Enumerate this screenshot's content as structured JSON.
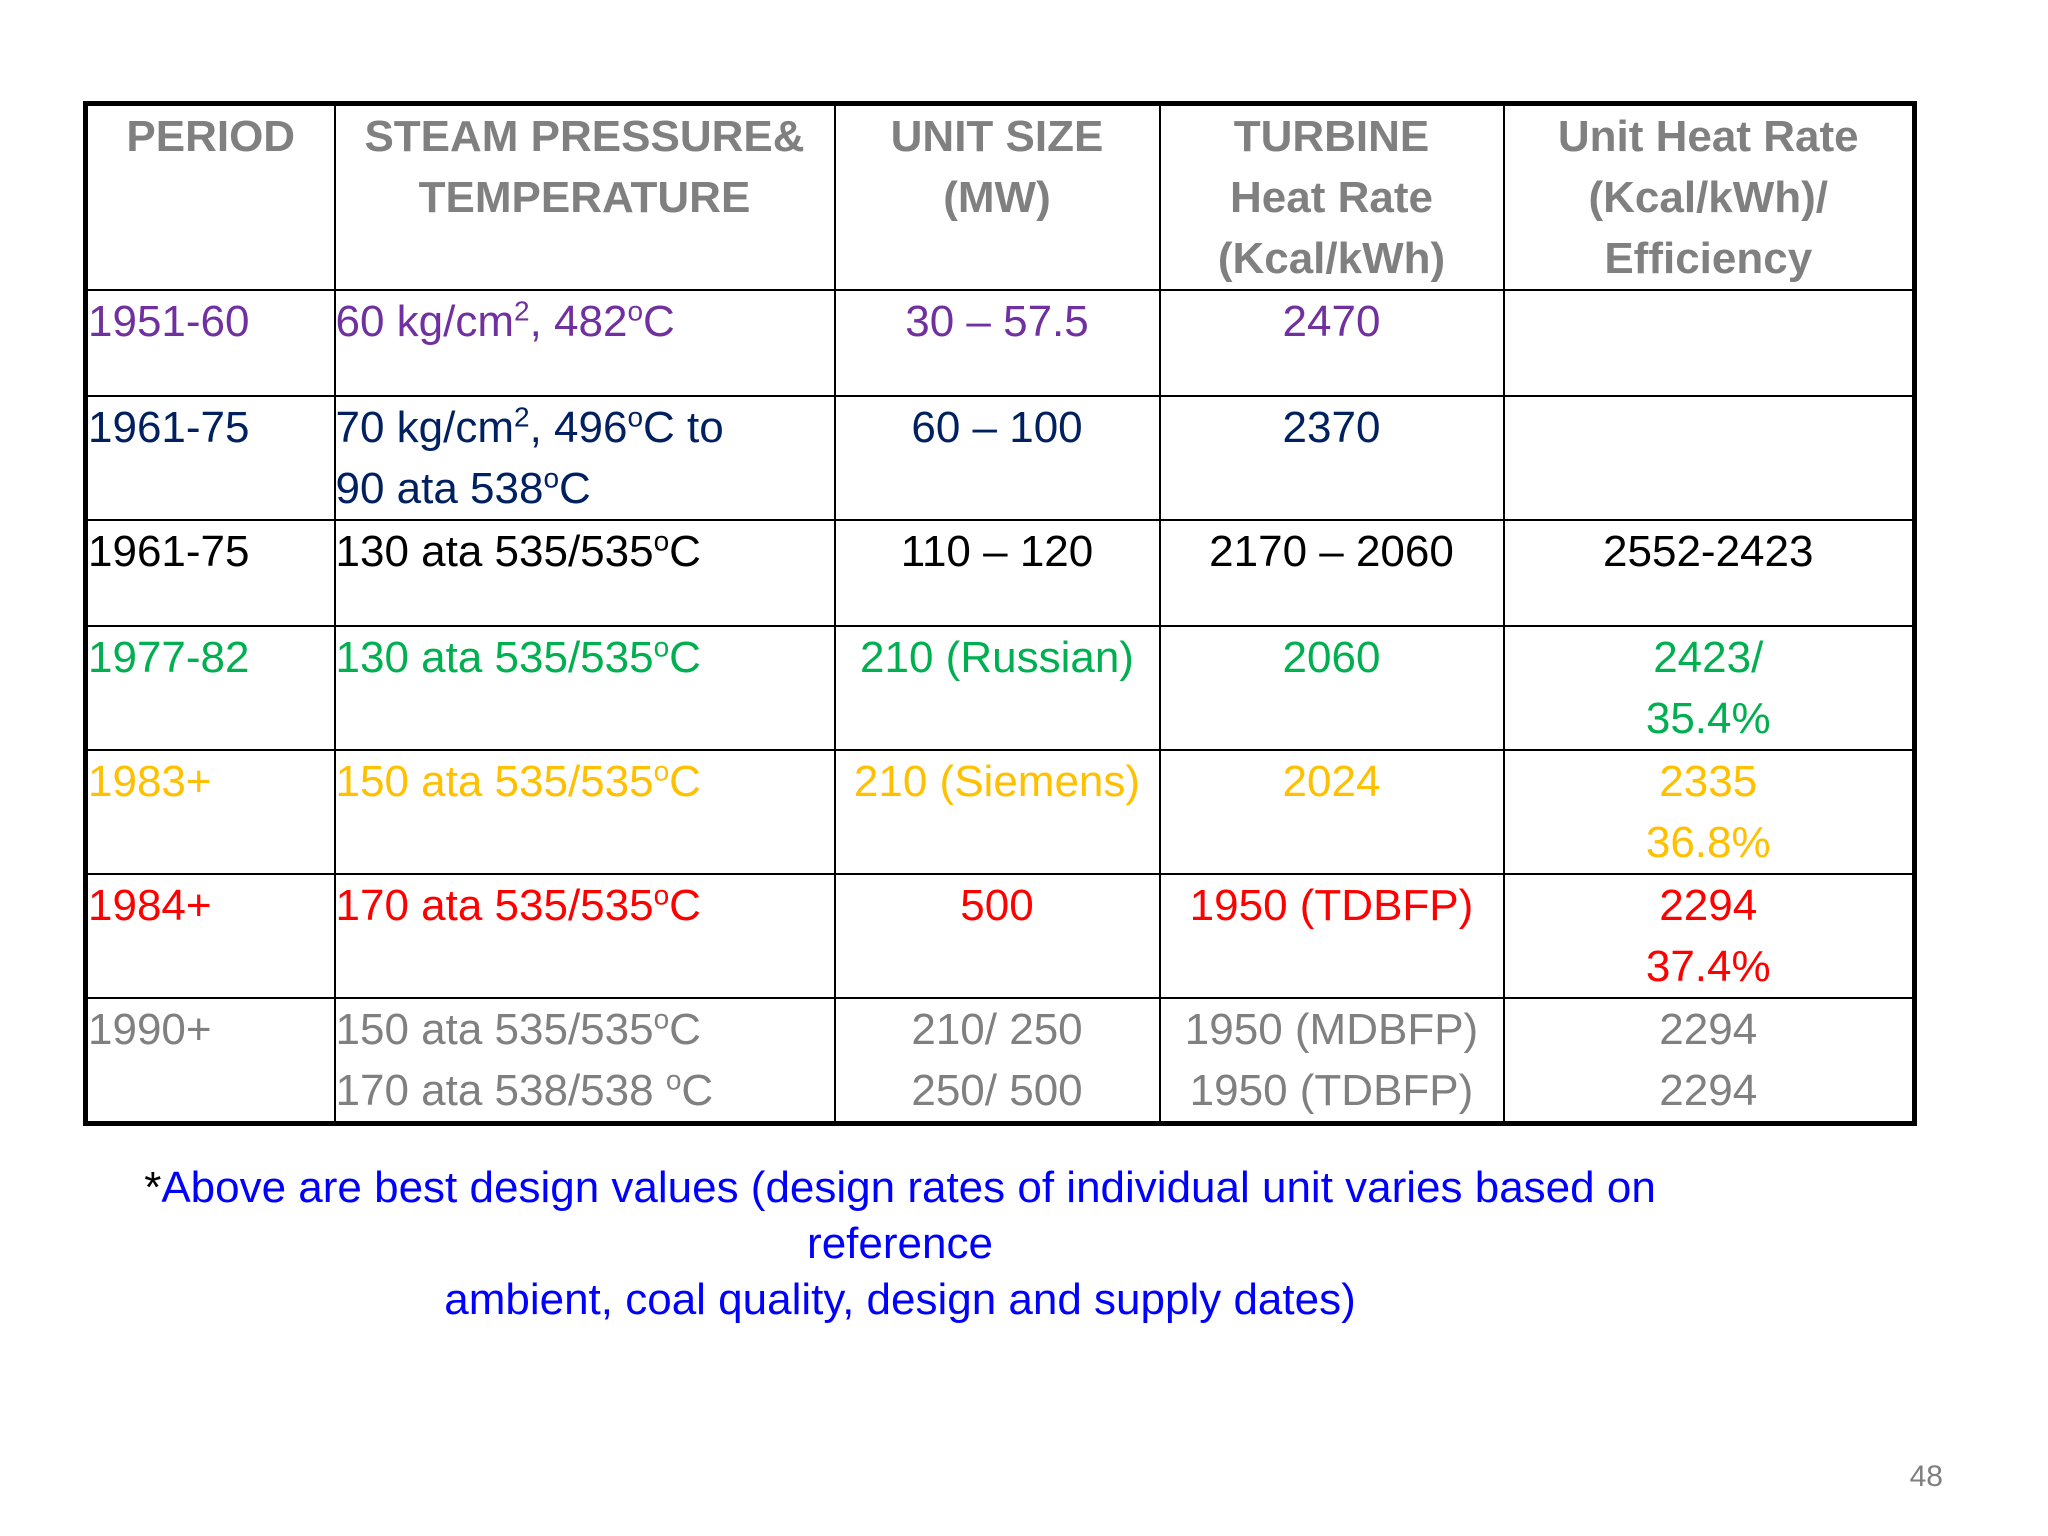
{
  "headers": [
    [
      "PERIOD"
    ],
    [
      "STEAM PRESSURE&",
      "TEMPERATURE"
    ],
    [
      "UNIT SIZE",
      "(MW)"
    ],
    [
      "TURBINE",
      "Heat Rate",
      "(Kcal/kWh)"
    ],
    [
      "Unit Heat Rate",
      "(Kcal/kWh)/",
      "Efficiency"
    ]
  ],
  "rows": [
    {
      "period": "1951-60",
      "steam": [
        [
          "60 kg/cm",
          "2",
          ", 482",
          "o",
          "C"
        ]
      ],
      "unit": [
        "30 – 57.5"
      ],
      "turbine": [
        "2470"
      ],
      "uhr": [],
      "color": "#7030A0"
    },
    {
      "period": "1961-75",
      "steam": [
        [
          "70 kg/cm",
          "2",
          ", 496",
          "o",
          "C to"
        ],
        [
          "90 ata 538",
          "o",
          "C"
        ]
      ],
      "unit": [
        "60 – 100"
      ],
      "turbine": [
        "2370"
      ],
      "uhr": [],
      "color": "#002060"
    },
    {
      "period": "1961-75",
      "steam": [
        [
          "130 ata 535/535",
          "o",
          "C"
        ]
      ],
      "unit": [
        "110 – 120"
      ],
      "turbine": [
        "2170 – 2060"
      ],
      "uhr": [
        "2552-2423"
      ],
      "color": "#000000"
    },
    {
      "period": "1977-82",
      "steam": [
        [
          "130 ata 535/535",
          "o",
          "C"
        ]
      ],
      "unit": [
        "210 (Russian)"
      ],
      "turbine": [
        "2060"
      ],
      "uhr": [
        "2423/",
        "35.4%"
      ],
      "color": "#00B050"
    },
    {
      "period": "1983+",
      "steam": [
        [
          "150 ata 535/535",
          "o",
          "C"
        ]
      ],
      "unit": [
        "210 (Siemens)"
      ],
      "turbine": [
        "2024"
      ],
      "uhr": [
        "2335",
        "36.8%"
      ],
      "color": "#FFC000"
    },
    {
      "period": "1984+",
      "steam": [
        [
          "170 ata 535/535",
          "o",
          "C"
        ]
      ],
      "unit": [
        "500"
      ],
      "turbine": [
        "1950 (TDBFP)"
      ],
      "uhr": [
        "2294",
        "37.4%"
      ],
      "color": "#FF0000"
    },
    {
      "period": "1990+",
      "steam": [
        [
          "150 ata 535/535",
          "o",
          "C"
        ],
        [
          "170 ata 538/538 ",
          "o",
          "C"
        ]
      ],
      "unit": [
        "210/ 250",
        "250/ 500"
      ],
      "turbine": [
        "1950 (MDBFP)",
        "1950 (TDBFP)"
      ],
      "uhr": [
        "2294",
        "2294"
      ],
      "color": "#808080"
    }
  ],
  "note": {
    "asterisk": "*",
    "line1": "Above are best design values (design rates of individual unit varies based on reference",
    "line2": "ambient, coal quality, design and supply dates)"
  },
  "page_number": "48"
}
